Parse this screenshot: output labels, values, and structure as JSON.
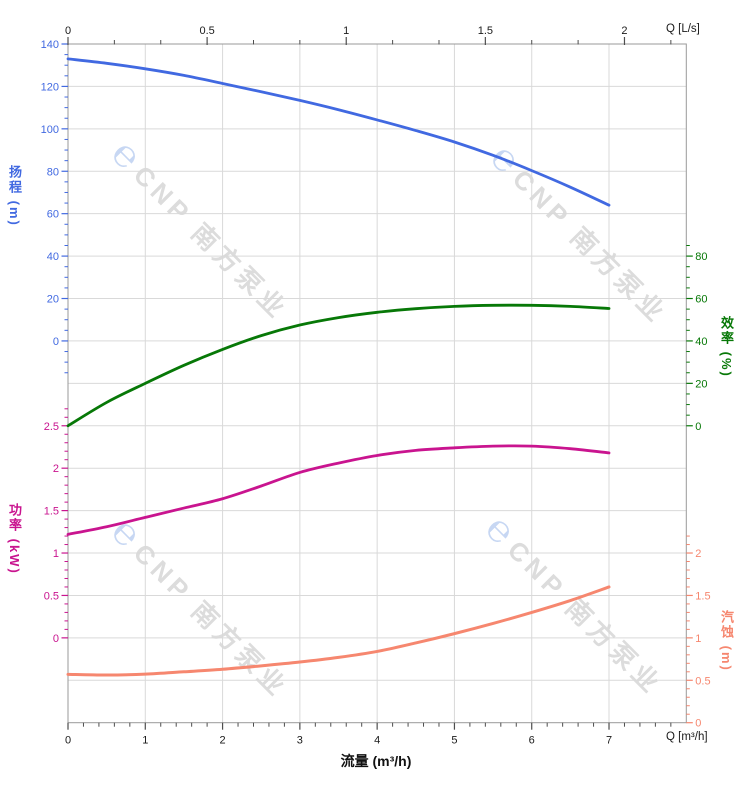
{
  "watermark": {
    "logo_char": "℮",
    "text": "CNP 南方泵业",
    "logo_color": "#c7d7f3",
    "text_color": "#dcdcdc"
  },
  "chart_data": {
    "type": "line",
    "title": "",
    "grid": {
      "on": true,
      "color": "#d9d9d9",
      "rows": 16,
      "x_lines": [
        1,
        2,
        3,
        4,
        5,
        6,
        7
      ]
    },
    "legend": "none",
    "x_bottom": {
      "unit": "Q [m³/h]",
      "axis_label": "流量 (m³/h)",
      "range": [
        0,
        8
      ],
      "tick_values": [
        0,
        1,
        2,
        3,
        4,
        5,
        6,
        7
      ],
      "tick_labels": [
        "0",
        "1",
        "2",
        "3",
        "4",
        "5",
        "6",
        "7"
      ],
      "minor_step": 0.2,
      "minor_range": [
        0,
        7.8
      ],
      "major_step": 1,
      "color": "#4d4d4d",
      "label_color": "#1a1a1a"
    },
    "x_top": {
      "unit": "Q [L/s]",
      "range": [
        0,
        2.2222
      ],
      "tick_values": [
        0,
        0.5,
        1,
        1.5,
        2
      ],
      "tick_labels": [
        "0",
        "0.5",
        "1",
        "1.5",
        "2"
      ],
      "minor_step": 0.166667,
      "minor_range": [
        0,
        2.1667
      ],
      "major_step": 0.5,
      "color": "#4d4d4d",
      "label_color": "#1a1a1a"
    },
    "y_axes": [
      {
        "id": "head",
        "title": "扬程 (m)",
        "side": "left",
        "color": "#4169e1",
        "rows": [
          0,
          7
        ],
        "vals": [
          140,
          0
        ],
        "tick_values": [
          140,
          120,
          100,
          80,
          60,
          40,
          20,
          0
        ],
        "tick_labels": [
          "140",
          "120",
          "100",
          "80",
          "60",
          "40",
          "20",
          "0"
        ],
        "major_step": 20,
        "minor_step": 5,
        "minor_range": [
          -15,
          140
        ]
      },
      {
        "id": "efficiency",
        "title": "效率 (%)",
        "side": "right",
        "color": "#077807",
        "rows": [
          5,
          9
        ],
        "vals": [
          80,
          0
        ],
        "tick_values": [
          80,
          60,
          40,
          20,
          0
        ],
        "tick_labels": [
          "80",
          "60",
          "40",
          "20",
          "0"
        ],
        "major_step": 20,
        "minor_step": 5,
        "minor_range": [
          0,
          85
        ]
      },
      {
        "id": "power",
        "title": "功率 (kW)",
        "side": "left",
        "color": "#c9148f",
        "rows": [
          9,
          14
        ],
        "vals": [
          2.5,
          0
        ],
        "tick_values": [
          2.5,
          2,
          1.5,
          1,
          0.5,
          0
        ],
        "tick_labels": [
          "2.5",
          "2",
          "1.5",
          "1",
          "0.5",
          "0"
        ],
        "major_step": 0.5,
        "minor_step": 0.1,
        "minor_range": [
          0,
          2.7
        ]
      },
      {
        "id": "npsh",
        "title": "汽蚀 (m)",
        "side": "right",
        "color": "#f6876f",
        "rows": [
          12,
          16
        ],
        "vals": [
          2,
          0
        ],
        "tick_values": [
          2,
          1.5,
          1,
          0.5,
          0
        ],
        "tick_labels": [
          "2",
          "1.5",
          "1",
          "0.5",
          "0"
        ],
        "major_step": 0.5,
        "minor_step": 0.1,
        "minor_range": [
          0,
          2.2
        ]
      }
    ],
    "series": [
      {
        "id": "head",
        "name": "扬程",
        "axis": "head",
        "color": "#4169e1",
        "width": 2.8,
        "points": [
          [
            0,
            133
          ],
          [
            0.5,
            130.9
          ],
          [
            1,
            128.3
          ],
          [
            1.5,
            125.2
          ],
          [
            2,
            121.4
          ],
          [
            2.5,
            117.5
          ],
          [
            3,
            113.4
          ],
          [
            3.5,
            109
          ],
          [
            4,
            104.2
          ],
          [
            4.5,
            99.2
          ],
          [
            5,
            93.8
          ],
          [
            5.5,
            87.5
          ],
          [
            6,
            80.3
          ],
          [
            6.5,
            72.5
          ],
          [
            7,
            64
          ]
        ]
      },
      {
        "id": "efficiency",
        "name": "效率",
        "axis": "efficiency",
        "color": "#077807",
        "width": 2.8,
        "points": [
          [
            0,
            0
          ],
          [
            0.5,
            11
          ],
          [
            1,
            20
          ],
          [
            1.5,
            28.5
          ],
          [
            2,
            36
          ],
          [
            2.5,
            42.5
          ],
          [
            3,
            47.5
          ],
          [
            3.5,
            51
          ],
          [
            4,
            53.5
          ],
          [
            4.5,
            55.2
          ],
          [
            5,
            56.3
          ],
          [
            5.5,
            56.8
          ],
          [
            6,
            56.8
          ],
          [
            6.5,
            56.3
          ],
          [
            7,
            55.3
          ]
        ]
      },
      {
        "id": "power",
        "name": "功率",
        "axis": "power",
        "color": "#c9148f",
        "width": 2.8,
        "points": [
          [
            0,
            1.22
          ],
          [
            0.5,
            1.31
          ],
          [
            1,
            1.42
          ],
          [
            1.5,
            1.53
          ],
          [
            2,
            1.64
          ],
          [
            2.5,
            1.79
          ],
          [
            3,
            1.95
          ],
          [
            3.5,
            2.06
          ],
          [
            4,
            2.15
          ],
          [
            4.5,
            2.21
          ],
          [
            5,
            2.24
          ],
          [
            5.5,
            2.26
          ],
          [
            6,
            2.26
          ],
          [
            6.5,
            2.23
          ],
          [
            7,
            2.18
          ]
        ]
      },
      {
        "id": "npsh",
        "name": "汽蚀",
        "axis": "npsh",
        "color": "#f6876f",
        "width": 3,
        "points": [
          [
            0,
            0.57
          ],
          [
            0.5,
            0.562
          ],
          [
            1,
            0.572
          ],
          [
            1.5,
            0.6
          ],
          [
            2,
            0.63
          ],
          [
            2.5,
            0.67
          ],
          [
            3,
            0.715
          ],
          [
            3.5,
            0.77
          ],
          [
            4,
            0.84
          ],
          [
            4.5,
            0.94
          ],
          [
            5,
            1.05
          ],
          [
            5.5,
            1.17
          ],
          [
            6,
            1.3
          ],
          [
            6.5,
            1.44
          ],
          [
            7,
            1.6
          ]
        ]
      }
    ]
  }
}
